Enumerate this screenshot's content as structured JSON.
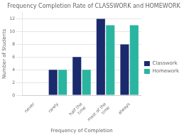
{
  "chart_data": {
    "type": "bar",
    "title": "Frequency Completion Rate of CLASSWORK and HOMEWORK",
    "xlabel": "Frequency of Completion",
    "ylabel": "Number of Students",
    "categories": [
      "never",
      "rarely",
      "half the\ntime",
      "most of the\ntime",
      "always"
    ],
    "series": [
      {
        "name": "Classwork",
        "color": "#1a2a6c",
        "values": [
          0,
          4,
          6,
          12,
          8
        ]
      },
      {
        "name": "Homework",
        "color": "#2ab5a0",
        "values": [
          0,
          4,
          4,
          11,
          11
        ]
      }
    ],
    "ylim": [
      0,
      13
    ],
    "yticks": [
      0,
      2,
      4,
      6,
      8,
      10,
      12
    ],
    "grid": true,
    "legend": "right"
  }
}
